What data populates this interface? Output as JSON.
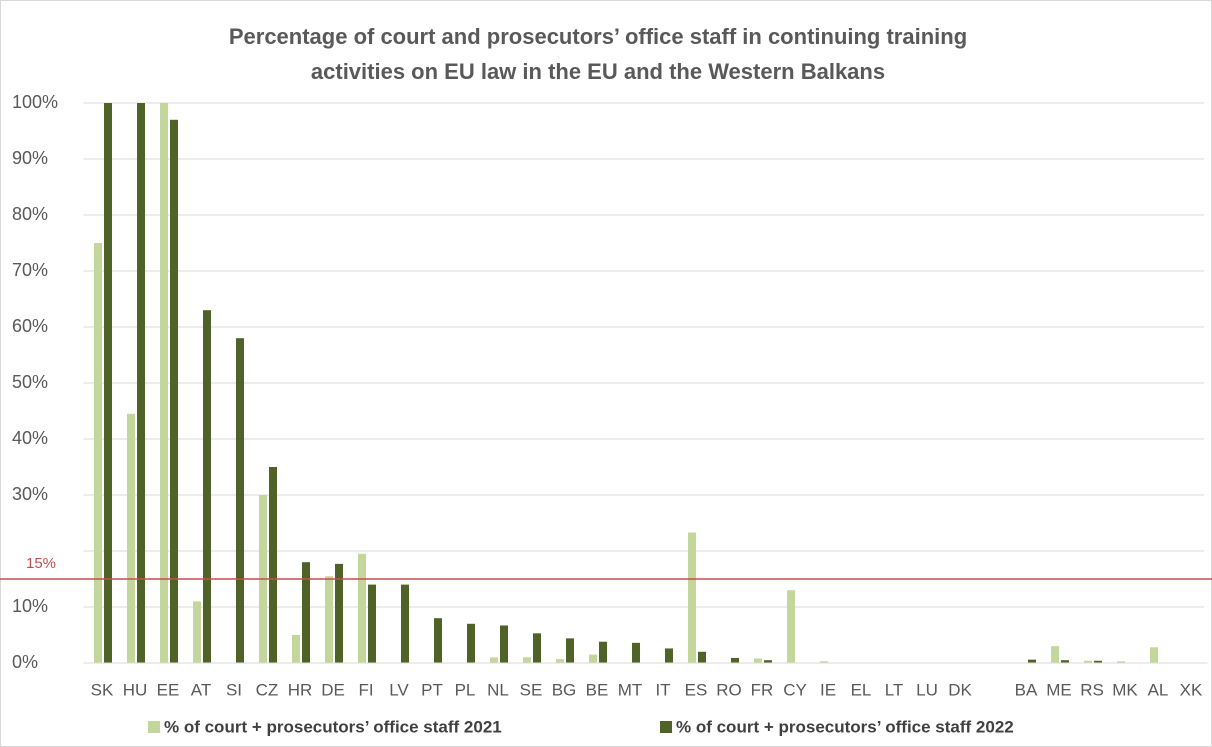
{
  "chart_data": {
    "type": "bar",
    "title": [
      "Percentage of court and prosecutors’ office staff in continuing training",
      "activities on EU law in the EU and the Western Balkans"
    ],
    "categories": [
      "SK",
      "HU",
      "EE",
      "AT",
      "SI",
      "CZ",
      "HR",
      "DE",
      "FI",
      "LV",
      "PT",
      "PL",
      "NL",
      "SE",
      "BG",
      "BE",
      "MT",
      "IT",
      "ES",
      "RO",
      "FR",
      "CY",
      "IE",
      "EL",
      "LT",
      "LU",
      "DK",
      null,
      "BA",
      "ME",
      "RS",
      "MK",
      "AL",
      "XK"
    ],
    "series": [
      {
        "name": "% of court + prosecutors’ office staff  2021",
        "color": "#c3d69b",
        "values": [
          75,
          44.5,
          100,
          11,
          0,
          30,
          5,
          15.5,
          19.5,
          0,
          0,
          0,
          1,
          1,
          0.7,
          1.5,
          0,
          0,
          23.3,
          0,
          0.8,
          13,
          0.3,
          0,
          0,
          0,
          0,
          null,
          0,
          3,
          0.4,
          0.3,
          2.8,
          0
        ]
      },
      {
        "name": "% of court + prosecutors’ office staff 2022",
        "color": "#4f6228",
        "values": [
          100,
          100,
          97,
          63,
          58,
          35,
          18,
          17.7,
          14,
          14,
          8,
          7,
          6.7,
          5.3,
          4.4,
          3.8,
          3.6,
          2.6,
          2,
          0.9,
          0.5,
          0,
          0,
          0,
          0,
          0,
          0,
          null,
          0.6,
          0.5,
          0.4,
          0,
          0,
          0
        ]
      }
    ],
    "ylim": [
      0,
      100
    ],
    "yticks": [
      {
        "value": 0,
        "label": "0%"
      },
      {
        "value": 10,
        "label": "10%"
      },
      {
        "value": 20
      },
      {
        "value": 30,
        "label": "30%"
      },
      {
        "value": 40,
        "label": "40%"
      },
      {
        "value": 50,
        "label": "50%"
      },
      {
        "value": 60,
        "label": "60%"
      },
      {
        "value": 70,
        "label": "70%"
      },
      {
        "value": 80,
        "label": "80%"
      },
      {
        "value": 90,
        "label": "90%"
      },
      {
        "value": 100,
        "label": "100%"
      }
    ],
    "grid": true,
    "reference_line": {
      "value": 15,
      "label": "15%",
      "color": "#c0504d"
    }
  }
}
